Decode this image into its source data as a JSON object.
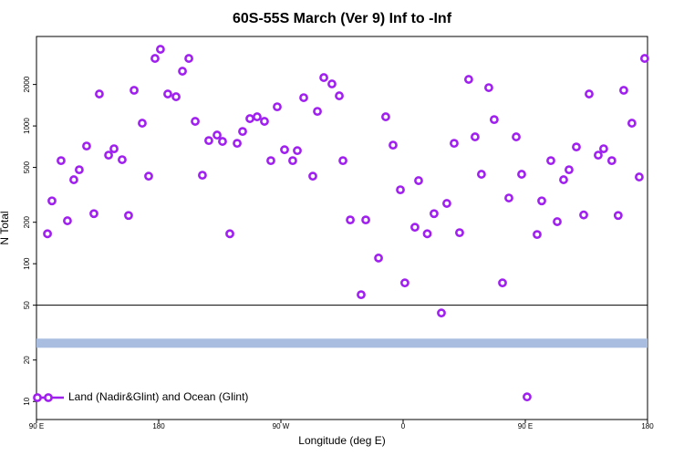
{
  "chart_data": {
    "type": "scatter",
    "title": "60S-55S March (Ver 9)   Inf to -Inf",
    "xlabel": "Longitude (deg E)",
    "ylabel": "N Total",
    "log_y": true,
    "xlim": [
      90,
      540
    ],
    "ylim": [
      7.4,
      4460
    ],
    "xticks": [
      {
        "value": 90,
        "label": "90 E"
      },
      {
        "value": 180,
        "label": "180"
      },
      {
        "value": 270,
        "label": "90 W"
      },
      {
        "value": 360,
        "label": "0"
      },
      {
        "value": 450,
        "label": "90 E"
      },
      {
        "value": 540,
        "label": "180"
      }
    ],
    "yticks": [
      10,
      20,
      50,
      100,
      200,
      500,
      1000,
      2000
    ],
    "hline": 50,
    "hline_color": "#000000",
    "band": 26.5,
    "band_color": "#a8bde0",
    "legend": "bottom-left",
    "series": [
      {
        "name": "Land (Nadir&Glint) and Ocean (Glint)",
        "color": "#a020f0",
        "x": [
          98.1,
          101.4,
          108.1,
          112.8,
          117.5,
          121.5,
          126.9,
          132.3,
          136.3,
          143.1,
          147.1,
          153.1,
          157.8,
          161.9,
          167.9,
          172.6,
          177.3,
          181.3,
          186.7,
          192.8,
          197.5,
          202.2,
          206.9,
          212.2,
          216.9,
          223.0,
          227.0,
          232.4,
          237.8,
          241.8,
          247.2,
          252.5,
          257.9,
          262.6,
          267.3,
          272.7,
          278.7,
          282.1,
          286.8,
          293.5,
          296.9,
          301.6,
          307.6,
          313.0,
          315.7,
          321.1,
          329.1,
          332.5,
          341.9,
          347.2,
          352.6,
          358.0,
          361.3,
          368.7,
          371.4,
          377.8,
          382.8,
          388.2,
          392.2,
          397.6,
          401.6,
          408.3,
          413.0,
          417.7,
          423.1,
          427.1,
          433.2,
          437.9,
          443.3,
          447.3,
          451.3,
          458.7,
          462.1,
          468.8,
          473.5,
          478.2,
          482.2,
          487.6,
          493.0,
          497.0,
          503.7,
          507.7,
          513.7,
          518.4,
          522.5,
          528.5,
          533.9,
          537.9
        ],
        "values": [
          165,
          286,
          560,
          205,
          407,
          481,
          715,
          231,
          1706,
          614,
          683,
          569,
          224,
          1815,
          1047,
          432,
          3090,
          3600,
          1706,
          1629,
          2497,
          3090,
          1080,
          439,
          783,
          859,
          772,
          165,
          748,
          912,
          1130,
          1165,
          1080,
          560,
          1377,
          672,
          560,
          662,
          1604,
          432,
          1276,
          2244,
          2018,
          1654,
          560,
          208,
          59.6,
          208,
          110,
          1165,
          726,
          344,
          72.6,
          184,
          401,
          165,
          231,
          43.9,
          274,
          748,
          168,
          2177,
          833,
          446,
          1897,
          1112,
          72.6,
          300,
          833,
          446,
          10.8,
          163,
          286,
          560,
          202,
          407,
          481,
          704,
          226,
          1706,
          614,
          683,
          560,
          224,
          1815,
          1047,
          426,
          3090
        ]
      }
    ]
  }
}
